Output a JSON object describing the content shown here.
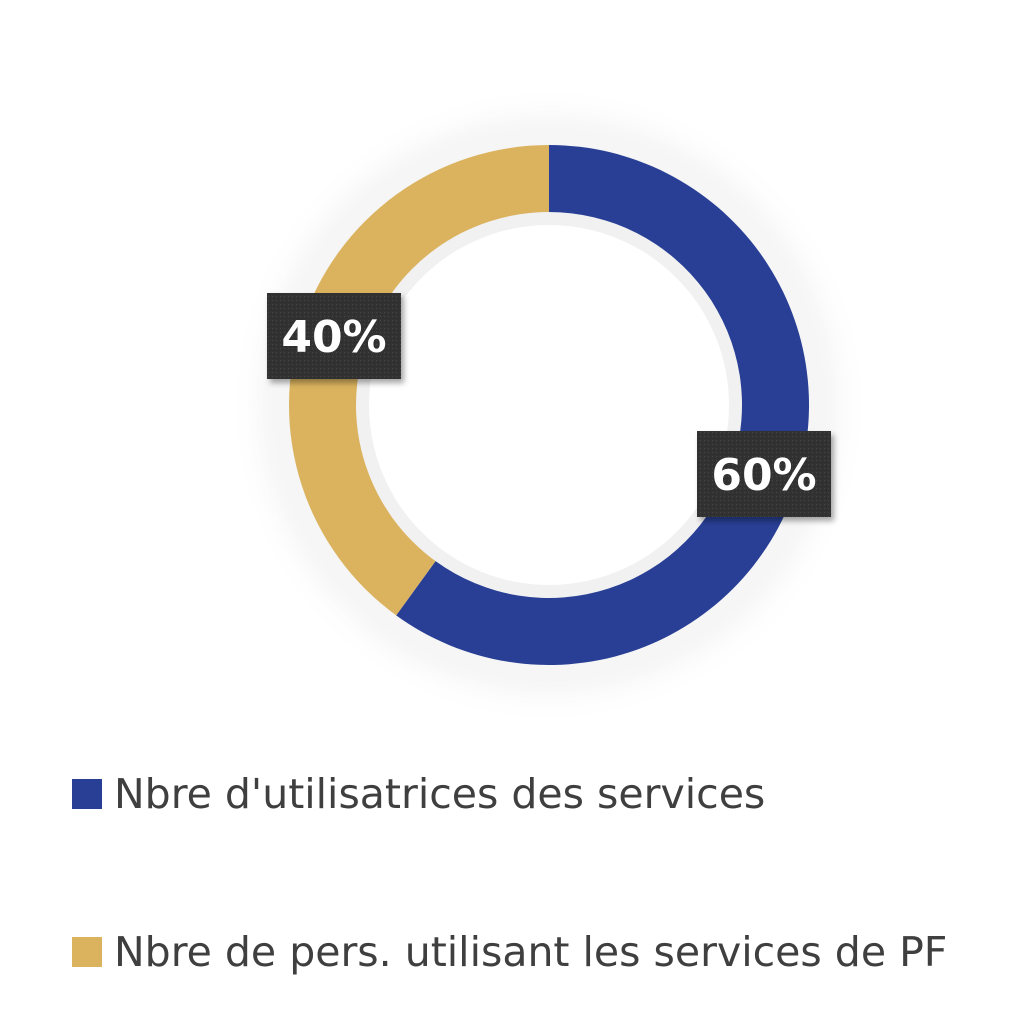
{
  "chart_data": {
    "type": "pie",
    "donut": true,
    "start_angle_deg": 0,
    "direction": "clockwise",
    "slices": [
      {
        "name": "Nbre d'utilisatrices des services",
        "value": 60,
        "label": "60%",
        "color": "#283F95"
      },
      {
        "name": "Nbre de pers. utilisant les services de PF",
        "value": 40,
        "label": "40%",
        "color": "#DBB35F"
      }
    ],
    "legend_position": "bottom",
    "label_box_color": "#333333",
    "label_text_color": "#FFFFFF"
  }
}
